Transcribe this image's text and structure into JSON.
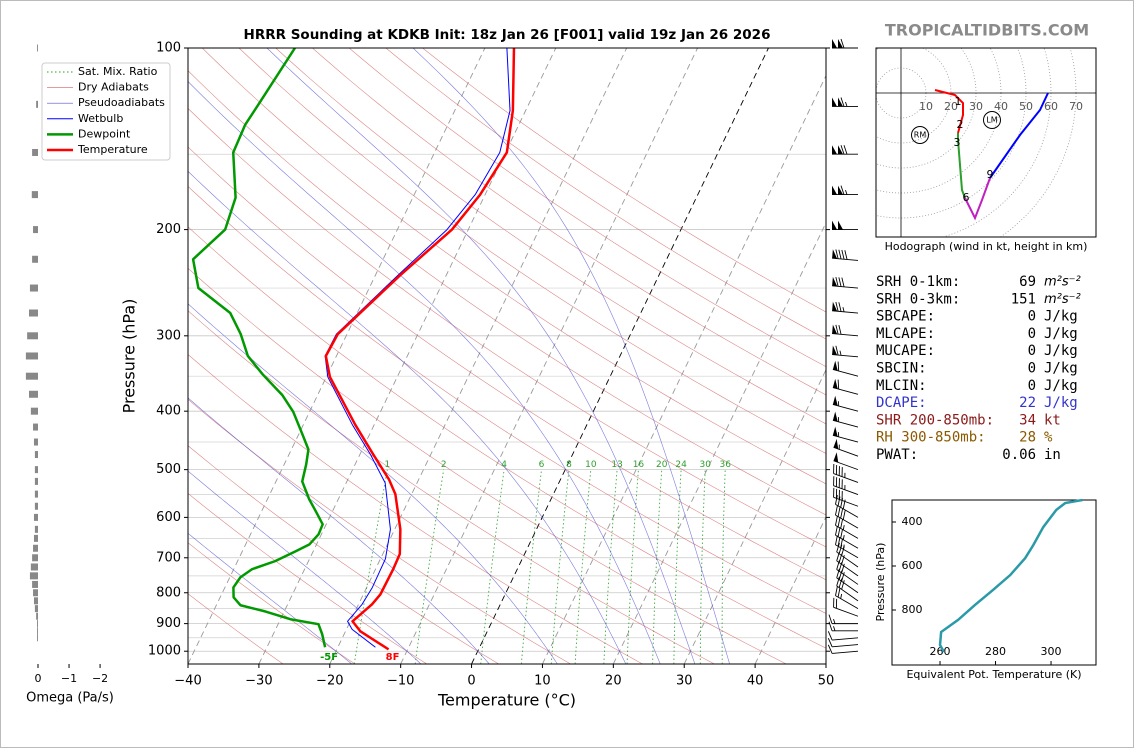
{
  "watermark": "TROPICALTIDBITS.COM",
  "chart_data": [
    {
      "type": "skewt",
      "title": "HRRR Sounding at KDKB Init: 18z Jan 26 [F001] valid 19z Jan 26 2026",
      "xlabel": "Temperature (°C)",
      "ylabel": "Pressure (hPa)",
      "xlim": [
        -40,
        50
      ],
      "ylim": [
        1050,
        100
      ],
      "xticks": [
        {
          "value": -40,
          "label": "−40"
        },
        {
          "value": -30,
          "label": "−30"
        },
        {
          "value": -20,
          "label": "−20"
        },
        {
          "value": -10,
          "label": "−10"
        },
        0,
        10,
        20,
        30,
        40,
        50
      ],
      "yticks": [
        100,
        200,
        300,
        400,
        500,
        600,
        700,
        800,
        900,
        1000
      ],
      "isobars": [
        150,
        250,
        350,
        450,
        550,
        650,
        750,
        850,
        950
      ],
      "grid": true,
      "legend": "upper left",
      "background": [
        {
          "name": "Sat. Mix. Ratio",
          "kind": "mixing_ratio",
          "color": "#2ca02c",
          "values": [
            1,
            2,
            4,
            6,
            8,
            10,
            13,
            16,
            20,
            24,
            30,
            36
          ]
        },
        {
          "name": "Dry Adiabats",
          "kind": "dry",
          "color": "#d06060",
          "values": [
            -30,
            -20,
            -10,
            0,
            10,
            20,
            30,
            40,
            50,
            60,
            70,
            80,
            90,
            100,
            110,
            120,
            130,
            140,
            150,
            160
          ]
        },
        {
          "name": "Pseudoadiabats",
          "kind": "moist",
          "color": "#5050d0",
          "values": [
            -20,
            -10,
            0,
            10,
            20,
            25,
            30,
            35
          ]
        }
      ],
      "series": [
        {
          "name": "Wetbulb",
          "color": "#0000ff",
          "linewidth": 1,
          "pressure": [
            985,
            920,
            892,
            836,
            784,
            703,
            628,
            526,
            472,
            421,
            351,
            324,
            298,
            238,
            200,
            175,
            149,
            127,
            100
          ],
          "values": [
            -14.7,
            -19.2,
            -20.4,
            -19.5,
            -19.2,
            -19.3,
            -20.6,
            -24.5,
            -28.5,
            -33.1,
            -39.8,
            -41.6,
            -41.5,
            -36.8,
            -33.0,
            -31.4,
            -30.8,
            -32.2,
            -36.9
          ]
        },
        {
          "name": "Dewpoint",
          "color": "#009900",
          "linewidth": 2.5,
          "surface_label": "-5F",
          "pressure": [
            985,
            937,
            902,
            885,
            859,
            839,
            814,
            784,
            754,
            731,
            709,
            683,
            665,
            640,
            616,
            587,
            560,
            523,
            490,
            463,
            438,
            401,
            376,
            348,
            324,
            298,
            275,
            250,
            224,
            200,
            177,
            149,
            134,
            124,
            100
          ],
          "values": [
            -21.8,
            -23.1,
            -24.3,
            -28.6,
            -32.7,
            -36.6,
            -38.1,
            -38.8,
            -38.5,
            -37.4,
            -34.7,
            -32.5,
            -31.0,
            -30.4,
            -30.5,
            -32.3,
            -34.1,
            -36.3,
            -36.9,
            -37.6,
            -39.4,
            -42.3,
            -45.0,
            -49.1,
            -52.5,
            -55.0,
            -57.9,
            -64.1,
            -66.8,
            -64.3,
            -65.0,
            -68.4,
            -68.6,
            -68.1,
            -66.8
          ]
        },
        {
          "name": "Temperature",
          "color": "#ff0000",
          "linewidth": 2.5,
          "surface_label": "8F",
          "pressure": [
            993,
            927,
            892,
            836,
            805,
            731,
            690,
            628,
            549,
            519,
            472,
            421,
            351,
            324,
            298,
            238,
            200,
            175,
            149,
            127,
            100
          ],
          "values": [
            -12.7,
            -17.9,
            -19.7,
            -18.1,
            -17.6,
            -17.5,
            -17.6,
            -19.2,
            -22.3,
            -24.2,
            -28.1,
            -32.7,
            -39.5,
            -41.5,
            -41.3,
            -36.5,
            -32.3,
            -30.7,
            -29.8,
            -31.8,
            -35.9
          ]
        }
      ],
      "wind": {
        "pressure": [
          100,
          125,
          150,
          175,
          200,
          225,
          250,
          275,
          300,
          325,
          350,
          375,
          400,
          425,
          450,
          475,
          500,
          525,
          550,
          575,
          600,
          625,
          650,
          675,
          700,
          725,
          750,
          775,
          800,
          825,
          850,
          875,
          900,
          925,
          950,
          975,
          1000
        ],
        "speed": [
          110,
          115,
          120,
          115,
          100,
          90,
          80,
          75,
          70,
          65,
          60,
          60,
          55,
          55,
          55,
          55,
          50,
          45,
          45,
          40,
          40,
          40,
          35,
          35,
          35,
          30,
          30,
          30,
          30,
          30,
          25,
          20,
          15,
          15,
          10,
          10,
          10
        ],
        "direction": [
          270,
          270,
          270,
          270,
          270,
          275,
          275,
          275,
          275,
          275,
          285,
          285,
          285,
          285,
          285,
          290,
          290,
          290,
          290,
          290,
          300,
          300,
          300,
          300,
          300,
          305,
          305,
          305,
          305,
          305,
          300,
          290,
          270,
          270,
          265,
          265,
          265
        ]
      }
    },
    {
      "type": "hbar",
      "xlabel": "Omega (Pa/s)",
      "xlim": [
        0.58,
        -2.32
      ],
      "xticks": [
        0,
        {
          "value": -1,
          "label": "−1"
        },
        {
          "value": -2,
          "label": "−2"
        }
      ],
      "color": "#888888",
      "pressure": [
        100,
        124,
        149,
        175,
        200,
        224,
        250,
        275,
        300,
        324,
        350,
        375,
        400,
        425,
        450,
        472,
        500,
        523,
        549,
        575,
        600,
        628,
        650,
        675,
        700,
        725,
        750,
        775,
        800,
        825,
        850,
        875,
        900,
        925,
        950
      ],
      "values": [
        0.03,
        0.06,
        0.19,
        0.2,
        0.16,
        0.19,
        0.26,
        0.29,
        0.35,
        0.39,
        0.39,
        0.29,
        0.23,
        0.16,
        0.13,
        0.1,
        0.1,
        0.1,
        0.1,
        0.1,
        0.13,
        0.1,
        0.13,
        0.16,
        0.19,
        0.23,
        0.26,
        0.19,
        0.16,
        0.13,
        0.1,
        0.06,
        0.03,
        0.03,
        0.03
      ]
    },
    {
      "type": "hodograph",
      "caption": "Hodograph (wind in kt, height in km)",
      "xlim": [
        -10,
        78
      ],
      "ylim": [
        -57.6,
        18
      ],
      "rings": [
        10,
        20,
        30,
        40,
        50,
        60,
        70
      ],
      "series": [
        {
          "color": "#ff0000",
          "u": [
            13.6,
            21.6,
            24.8,
            24.8,
            22.8
          ],
          "v": [
            1.2,
            -0.8,
            -4,
            -8.8,
            -16
          ]
        },
        {
          "color": "#2ca02c",
          "u": [
            22.8,
            22.8,
            23.6,
            24.4,
            25.6
          ],
          "v": [
            -16,
            -18.8,
            -28.8,
            -38.8,
            -42
          ]
        },
        {
          "color": "#c020c0",
          "u": [
            25.6,
            29.6,
            32.4,
            35.6
          ],
          "v": [
            -42,
            -50,
            -42.8,
            -34
          ]
        },
        {
          "color": "#0000ff",
          "u": [
            35.6,
            47.6,
            55.6,
            58.8
          ],
          "v": [
            -34,
            -16.8,
            -6.8,
            0
          ]
        }
      ],
      "height_labels": [
        {
          "label": 1,
          "u": 22.8,
          "v": -3.6
        },
        {
          "label": 2,
          "u": 23.6,
          "v": -12.8
        },
        {
          "label": 3,
          "u": 22.4,
          "v": -20
        },
        {
          "label": 6,
          "u": 26,
          "v": -42
        },
        {
          "label": 9,
          "u": 35.6,
          "v": -32.8
        }
      ],
      "storm_motion": [
        {
          "label": "RM",
          "u": 7.6,
          "v": -16.8
        },
        {
          "label": "LM",
          "u": 36.4,
          "v": -10.8
        }
      ]
    },
    {
      "type": "line",
      "xlabel": "Equivalent Pot. Temperature (K)",
      "ylabel": "Pressure (hPa)",
      "xlim": [
        242.7,
        316.2
      ],
      "ylim": [
        1050,
        300
      ],
      "xticks": [
        260,
        280,
        300
      ],
      "yticks": [
        400,
        600,
        800
      ],
      "color": "#2a9aa8",
      "x": [
        261.4,
        260,
        260.4,
        266.5,
        272.6,
        279.1,
        285.3,
        290.7,
        293.6,
        297.2,
        301.9,
        305.1,
        311.3
      ],
      "y": [
        991,
        959,
        900,
        845,
        777,
        709,
        641,
        564,
        505,
        423,
        345,
        314,
        300
      ]
    }
  ],
  "stats": [
    {
      "label": "SRH 0-1km:",
      "value": 69,
      "unit": "m²s⁻²",
      "color": "#000000"
    },
    {
      "label": "SRH 0-3km:",
      "value": 151,
      "unit": "m²s⁻²",
      "color": "#000000"
    },
    {
      "label": "SBCAPE:",
      "value": 0,
      "unit": "J/kg",
      "color": "#000000"
    },
    {
      "label": "MLCAPE:",
      "value": 0,
      "unit": "J/kg",
      "color": "#000000"
    },
    {
      "label": "MUCAPE:",
      "value": 0,
      "unit": "J/kg",
      "color": "#000000"
    },
    {
      "label": "SBCIN:",
      "value": 0,
      "unit": "J/kg",
      "color": "#000000"
    },
    {
      "label": "MLCIN:",
      "value": 0,
      "unit": "J/kg",
      "color": "#000000"
    },
    {
      "label": "DCAPE:",
      "value": 22,
      "unit": "J/kg",
      "color": "#3333cc"
    },
    {
      "label": "SHR 200-850mb:",
      "value": 34,
      "unit": "kt",
      "color": "#8b1a1a"
    },
    {
      "label": "RH 300-850mb:",
      "value": 28,
      "unit": "%",
      "color": "#8b5a00"
    },
    {
      "label": "PWAT:",
      "value": 0.06,
      "unit": "in",
      "color": "#000000"
    }
  ]
}
